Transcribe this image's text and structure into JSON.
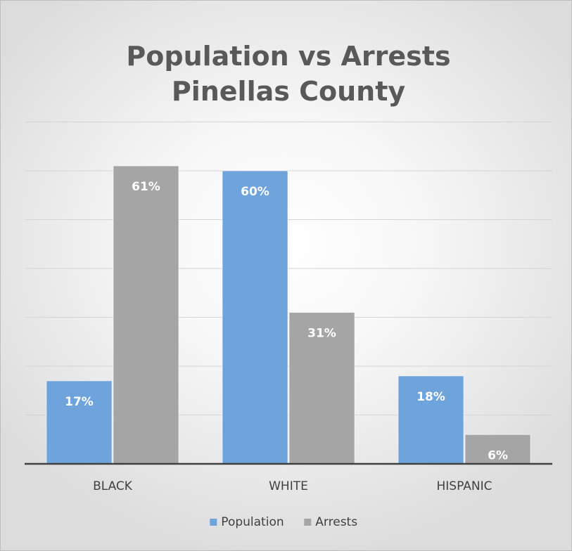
{
  "chart_data": {
    "type": "bar",
    "title_lines": [
      "Population vs Arrests",
      "Pinellas County"
    ],
    "categories": [
      "BLACK",
      "WHITE",
      "HISPANIC"
    ],
    "series": [
      {
        "name": "Population",
        "color": "#6fa3dc",
        "values": [
          17,
          60,
          18
        ],
        "labels": [
          "17%",
          "60%",
          "18%"
        ]
      },
      {
        "name": "Arrests",
        "color": "#a5a5a5",
        "values": [
          61,
          31,
          6
        ],
        "labels": [
          "61%",
          "31%",
          "6%"
        ]
      }
    ],
    "ylim": [
      0,
      70
    ],
    "grid": true,
    "legend_position": "bottom"
  }
}
